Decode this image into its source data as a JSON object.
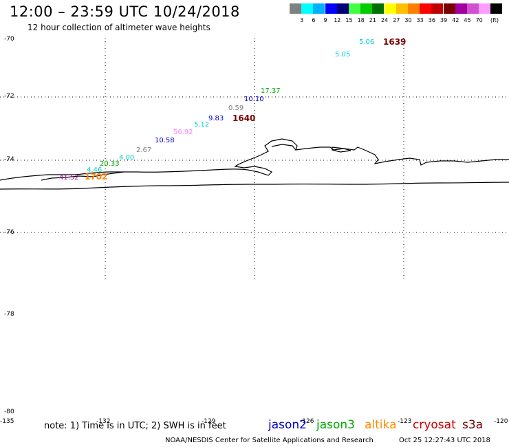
{
  "header": {
    "title": "12:00 – 23:59 UTC 10/24/2018",
    "subtitle": "12 hour collection of altimeter wave heights"
  },
  "legend": {
    "unit": "(ft)",
    "entries": [
      {
        "label": "",
        "color": "#808080"
      },
      {
        "label": "3",
        "color": "#00ffff"
      },
      {
        "label": "6",
        "color": "#00b0ff"
      },
      {
        "label": "9",
        "color": "#0000ff"
      },
      {
        "label": "12",
        "color": "#00007a"
      },
      {
        "label": "15",
        "color": "#44ff44"
      },
      {
        "label": "18",
        "color": "#00cc00"
      },
      {
        "label": "21",
        "color": "#007000"
      },
      {
        "label": "24",
        "color": "#ffff00"
      },
      {
        "label": "27",
        "color": "#ffc000"
      },
      {
        "label": "30",
        "color": "#ff8000"
      },
      {
        "label": "33",
        "color": "#ff0000"
      },
      {
        "label": "36",
        "color": "#c00000"
      },
      {
        "label": "39",
        "color": "#7a0000"
      },
      {
        "label": "42",
        "color": "#a000a0"
      },
      {
        "label": "45",
        "color": "#d050d0"
      },
      {
        "label": "70",
        "color": "#ff9cff"
      },
      {
        "label": "",
        "color": "#000000"
      }
    ]
  },
  "map": {
    "lat_labels": [
      "-70",
      "-72",
      "-74",
      "-76",
      "-78",
      "-80"
    ],
    "lon_labels": [
      "-135",
      "-132",
      "-129",
      "-126",
      "-123",
      "-120"
    ]
  },
  "observations": [
    {
      "text": "5.06",
      "color": "#00cccc"
    },
    {
      "text": "1639",
      "color": "#7a0000"
    },
    {
      "text": "5.05",
      "color": "#00cccc"
    },
    {
      "text": "17.37",
      "color": "#00aa00"
    },
    {
      "text": "10.10",
      "color": "#0000cc"
    },
    {
      "text": "0.59",
      "color": "#808080"
    },
    {
      "text": "1640",
      "color": "#7a0000"
    },
    {
      "text": "9.83",
      "color": "#0000cc"
    },
    {
      "text": "5.12",
      "color": "#00cccc"
    },
    {
      "text": "56.92",
      "color": "#ff80ff"
    },
    {
      "text": "10.58",
      "color": "#0000cc"
    },
    {
      "text": "2.67",
      "color": "#808080"
    },
    {
      "text": "4.00",
      "color": "#00cccc"
    },
    {
      "text": "20.33",
      "color": "#00aa00"
    },
    {
      "text": "4.46",
      "color": "#00cccc"
    },
    {
      "text": "41.52",
      "color": "#a000a0"
    },
    {
      "text": "1702",
      "color": "#ff8000"
    }
  ],
  "footer": {
    "note": "note: 1) Time is in UTC; 2) SWH is in feet",
    "satellites": [
      {
        "name": "jason2",
        "color": "#0000cc"
      },
      {
        "name": "jason3",
        "color": "#00aa00"
      },
      {
        "name": "altika",
        "color": "#ff8c00"
      },
      {
        "name": "cryosat",
        "color": "#cc0000"
      },
      {
        "name": "s3a",
        "color": "#7a0000"
      }
    ],
    "credit": "NOAA/NESDIS Center for Satellite Applications and Research",
    "timestamp": "Oct 25 12:27:43 UTC 2018"
  }
}
